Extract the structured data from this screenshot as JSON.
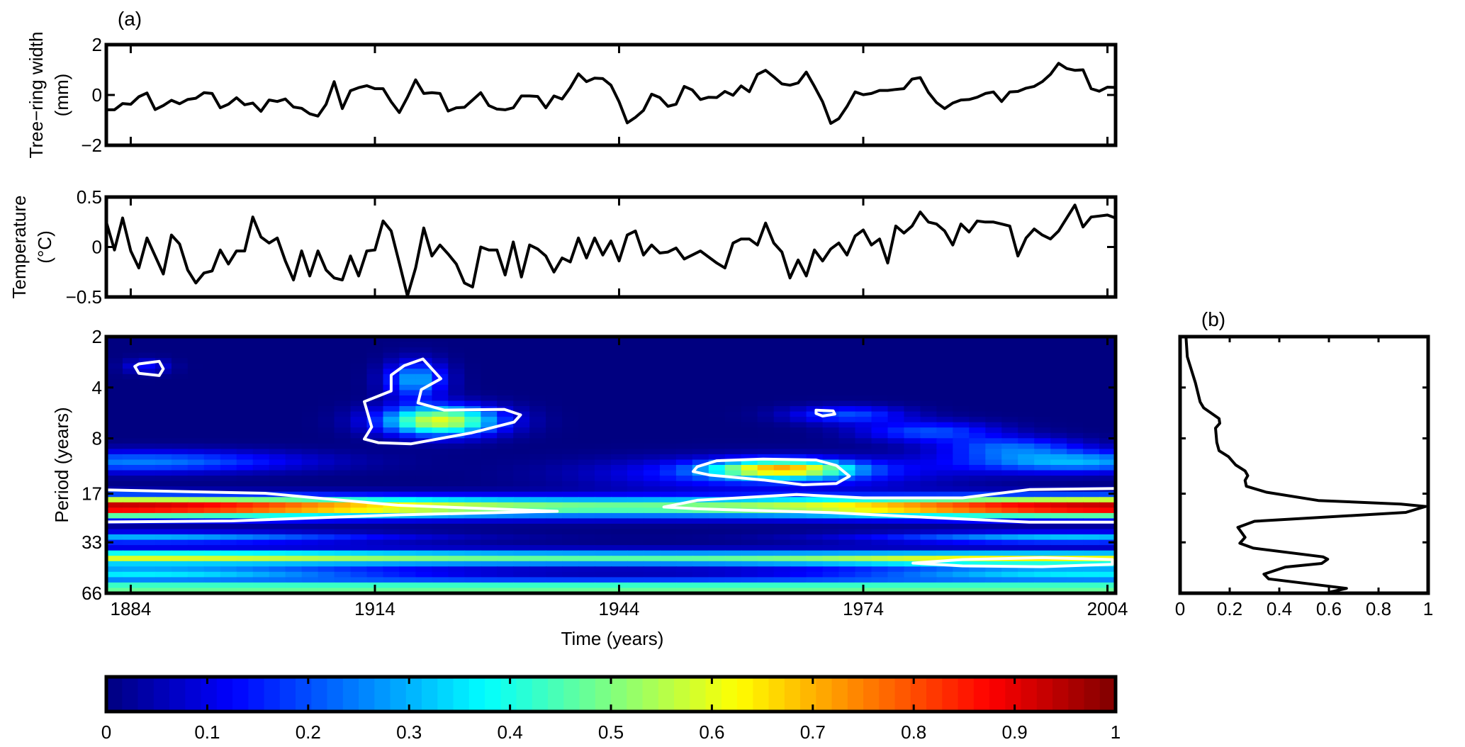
{
  "chart_data": [
    {
      "id": "tree_ring",
      "type": "line",
      "panel_label": "(a)",
      "ylabel_lines": [
        "Tree−ring width",
        "(mm)"
      ],
      "xlim": [
        1881,
        2005
      ],
      "ylim": [
        -2,
        2
      ],
      "yticks": [
        2,
        0,
        -2
      ],
      "ytick_labels": [
        "2",
        "0",
        "−2"
      ],
      "x_start": 1881,
      "x_step": 1,
      "values": [
        -0.59,
        -0.59,
        -0.34,
        -0.37,
        -0.07,
        0.08,
        -0.58,
        -0.42,
        -0.21,
        -0.35,
        -0.18,
        -0.13,
        0.09,
        0.06,
        -0.51,
        -0.37,
        -0.11,
        -0.39,
        -0.32,
        -0.65,
        -0.2,
        -0.26,
        -0.16,
        -0.48,
        -0.53,
        -0.75,
        -0.84,
        -0.37,
        0.53,
        -0.54,
        0.17,
        0.29,
        0.37,
        0.25,
        0.25,
        -0.27,
        -0.7,
        -0.09,
        0.6,
        0.06,
        0.09,
        0.06,
        -0.64,
        -0.51,
        -0.49,
        -0.2,
        0.09,
        -0.42,
        -0.56,
        -0.59,
        -0.51,
        -0.04,
        -0.04,
        -0.06,
        -0.51,
        -0.04,
        -0.16,
        0.29,
        0.84,
        0.53,
        0.67,
        0.65,
        0.39,
        -0.27,
        -1.11,
        -0.89,
        -0.61,
        0.03,
        -0.1,
        -0.45,
        -0.37,
        0.34,
        0.2,
        -0.18,
        -0.09,
        -0.1,
        0.14,
        -0.01,
        0.36,
        0.13,
        0.82,
        0.98,
        0.72,
        0.44,
        0.39,
        0.48,
        0.91,
        0.34,
        -0.27,
        -1.13,
        -0.94,
        -0.46,
        0.12,
        0.01,
        0.06,
        0.18,
        0.18,
        0.22,
        0.25,
        0.63,
        0.69,
        0.1,
        -0.3,
        -0.54,
        -0.32,
        -0.2,
        -0.18,
        -0.09,
        0.06,
        0.12,
        -0.26,
        0.12,
        0.14,
        0.27,
        0.34,
        0.53,
        0.82,
        1.26,
        1.05,
        0.98,
        1.0,
        0.25,
        0.15,
        0.31,
        0.3
      ]
    },
    {
      "id": "temperature",
      "type": "line",
      "ylabel_lines": [
        "Temperature",
        "(°C)"
      ],
      "xlim": [
        1881,
        2005
      ],
      "ylim": [
        -0.5,
        0.5
      ],
      "yticks": [
        0.5,
        0,
        -0.5
      ],
      "ytick_labels": [
        "0.5",
        "0",
        "−0.5"
      ],
      "x_start": 1881,
      "x_step": 1,
      "values": [
        0.25,
        -0.03,
        0.29,
        -0.04,
        -0.21,
        0.09,
        -0.09,
        -0.27,
        0.12,
        0.03,
        -0.23,
        -0.36,
        -0.26,
        -0.24,
        -0.03,
        -0.17,
        -0.04,
        -0.04,
        0.3,
        0.1,
        0.04,
        0.09,
        -0.14,
        -0.33,
        -0.04,
        -0.29,
        -0.04,
        -0.23,
        -0.31,
        -0.33,
        -0.09,
        -0.29,
        -0.04,
        -0.03,
        0.26,
        0.16,
        -0.16,
        -0.49,
        -0.21,
        0.19,
        -0.09,
        0.02,
        -0.07,
        -0.17,
        -0.36,
        -0.4,
        0.0,
        -0.03,
        -0.03,
        -0.28,
        0.05,
        -0.3,
        0.02,
        -0.02,
        -0.09,
        -0.25,
        -0.11,
        -0.15,
        0.09,
        -0.11,
        0.09,
        -0.08,
        0.06,
        -0.14,
        0.12,
        0.16,
        -0.08,
        0.02,
        -0.06,
        -0.05,
        -0.01,
        -0.12,
        -0.08,
        -0.04,
        -0.1,
        -0.16,
        -0.21,
        0.04,
        0.08,
        0.08,
        0.02,
        0.24,
        0.04,
        -0.05,
        -0.31,
        -0.13,
        -0.29,
        -0.03,
        -0.14,
        -0.02,
        0.04,
        -0.08,
        0.11,
        0.17,
        0.02,
        0.08,
        -0.16,
        0.21,
        0.14,
        0.21,
        0.35,
        0.25,
        0.23,
        0.16,
        0.02,
        0.23,
        0.15,
        0.26,
        0.25,
        0.25,
        0.23,
        0.21,
        -0.09,
        0.09,
        0.18,
        0.12,
        0.08,
        0.16,
        0.29,
        0.42,
        0.2,
        0.3,
        0.31,
        0.32,
        0.29
      ]
    },
    {
      "id": "wavelet_coherence",
      "type": "heatmap",
      "xlabel": "Time (years)",
      "ylabel": "Period (years)",
      "xlim": [
        1881,
        2005
      ],
      "ylim": [
        2,
        66
      ],
      "y_scale": "log2",
      "xticks": [
        1884,
        1914,
        1944,
        1974,
        2004
      ],
      "xtick_labels": [
        "1884",
        "1914",
        "1944",
        "1974",
        "2004"
      ],
      "yticks": [
        2,
        4,
        8,
        17,
        33,
        66
      ],
      "ytick_labels": [
        "2",
        "4",
        "8",
        "17",
        "33",
        "66"
      ],
      "colormap": "jet",
      "clim": [
        0,
        1
      ],
      "power_components": [
        {
          "year": 1943,
          "year_sd": 1000,
          "period": 20.4,
          "log2_sd": 0.14,
          "amp": 0.45
        },
        {
          "year": 1881,
          "year_sd": 26,
          "period": 20.4,
          "log2_sd": 0.14,
          "amp": 0.52
        },
        {
          "year": 2005,
          "year_sd": 24,
          "period": 20.4,
          "log2_sd": 0.14,
          "amp": 0.52
        },
        {
          "year": 1943,
          "year_sd": 1000,
          "period": 41,
          "log2_sd": 0.1,
          "amp": 0.45
        },
        {
          "year": 1995,
          "year_sd": 18,
          "period": 42,
          "log2_sd": 0.08,
          "amp": 0.2
        },
        {
          "year": 1885,
          "year_sd": 25,
          "period": 40,
          "log2_sd": 0.1,
          "amp": 0.15
        },
        {
          "year": 1943,
          "year_sd": 1000,
          "period": 62,
          "log2_sd": 0.12,
          "amp": 0.5
        },
        {
          "year": 1885,
          "year_sd": 22,
          "period": 31,
          "log2_sd": 0.08,
          "amp": 0.3
        },
        {
          "year": 2000,
          "year_sd": 18,
          "period": 31,
          "log2_sd": 0.08,
          "amp": 0.32
        },
        {
          "year": 1885,
          "year_sd": 22,
          "period": 50,
          "log2_sd": 0.08,
          "amp": 0.35
        },
        {
          "year": 2002,
          "year_sd": 22,
          "period": 50,
          "log2_sd": 0.08,
          "amp": 0.35
        },
        {
          "year": 1885,
          "year_sd": 14,
          "period": 11,
          "log2_sd": 0.15,
          "amp": 0.25
        },
        {
          "year": 2000,
          "year_sd": 10,
          "period": 11,
          "log2_sd": 0.15,
          "amp": 0.3
        },
        {
          "year": 1922,
          "year_sd": 5,
          "period": 6.3,
          "log2_sd": 0.2,
          "amp": 0.6
        },
        {
          "year": 1919,
          "year_sd": 2.5,
          "period": 3.6,
          "log2_sd": 0.25,
          "amp": 0.3
        },
        {
          "year": 1964,
          "year_sd": 6,
          "period": 12.1,
          "log2_sd": 0.12,
          "amp": 0.55
        },
        {
          "year": 1962,
          "year_sd": 14,
          "period": 13,
          "log2_sd": 0.22,
          "amp": 0.2
        },
        {
          "year": 1972,
          "year_sd": 5,
          "period": 5.8,
          "log2_sd": 0.12,
          "amp": 0.2
        },
        {
          "year": 1982,
          "year_sd": 6,
          "period": 7.3,
          "log2_sd": 0.14,
          "amp": 0.2
        },
        {
          "year": 1992,
          "year_sd": 6,
          "period": 9,
          "log2_sd": 0.14,
          "amp": 0.2
        },
        {
          "year": 1886,
          "year_sd": 2,
          "period": 3,
          "log2_sd": 0.1,
          "amp": 0.12
        }
      ],
      "significance_contours": [
        {
          "points": [
            [
              1885,
              2.9
            ],
            [
              1887.5,
              2.8
            ],
            [
              1888,
              3.1
            ],
            [
              1887.5,
              3.4
            ],
            [
              1885,
              3.3
            ],
            [
              1884.5,
              3.0
            ]
          ]
        },
        {
          "points": [
            [
              1919.9,
              2.71
            ],
            [
              1922.1,
              3.55
            ],
            [
              1919.7,
              4.12
            ],
            [
              1919.3,
              4.93
            ],
            [
              1922.5,
              5.44
            ],
            [
              1929.9,
              5.39
            ],
            [
              1931.9,
              5.81
            ],
            [
              1931.1,
              6.41
            ],
            [
              1925.8,
              7.43
            ],
            [
              1918.4,
              8.62
            ],
            [
              1914.4,
              8.48
            ],
            [
              1912.7,
              8.07
            ],
            [
              1913.6,
              6.85
            ],
            [
              1912.7,
              4.85
            ],
            [
              1916,
              4.19
            ],
            [
              1916,
              3.38
            ],
            [
              1917.6,
              2.97
            ]
          ]
        },
        {
          "points": [
            [
              1968.2,
              5.45
            ],
            [
              1970.3,
              5.5
            ],
            [
              1970.5,
              5.75
            ],
            [
              1969,
              5.9
            ],
            [
              1968.2,
              5.7
            ]
          ],
          "filled": true
        },
        {
          "points": [
            [
              1953.6,
              11.77
            ],
            [
              1956,
              10.85
            ],
            [
              1961.7,
              10.6
            ],
            [
              1968.2,
              10.74
            ],
            [
              1970.7,
              11.58
            ],
            [
              1972.3,
              13.4
            ],
            [
              1970.7,
              14.8
            ],
            [
              1966.6,
              15.06
            ],
            [
              1961.7,
              14.1
            ],
            [
              1955.2,
              13.2
            ],
            [
              1953.1,
              12.57
            ]
          ]
        },
        {
          "points": [
            [
              1879,
              16.08
            ],
            [
              1900.5,
              16.9
            ],
            [
              1916.8,
              19.9
            ],
            [
              1936.4,
              21.6
            ],
            [
              1916.8,
              22.7
            ],
            [
              1896.4,
              24.65
            ],
            [
              1879,
              25.05
            ]
          ]
        },
        {
          "points": [
            [
              1949.5,
              20.4
            ],
            [
              1953.6,
              18.6
            ],
            [
              1965.8,
              17.2
            ],
            [
              1974,
              18.0
            ],
            [
              1986.2,
              18.0
            ],
            [
              1994.4,
              16.08
            ],
            [
              2007,
              15.8
            ],
            [
              2007,
              25.05
            ],
            [
              1994.4,
              25.05
            ],
            [
              1982.1,
              23.5
            ],
            [
              1969.9,
              22.0
            ],
            [
              1953.6,
              20.9
            ]
          ]
        },
        {
          "points": [
            [
              1980.1,
              43.8
            ],
            [
              1986.2,
              41.7
            ],
            [
              1996,
              40.7
            ],
            [
              2004.6,
              41.7
            ],
            [
              2004.6,
              44.5
            ],
            [
              1996,
              46.0
            ],
            [
              1986.2,
              45.5
            ]
          ]
        }
      ]
    },
    {
      "id": "global_spectrum",
      "type": "line",
      "panel_label": "(b)",
      "xlim": [
        0,
        1
      ],
      "xticks": [
        0,
        0.2,
        0.4,
        0.6,
        0.8,
        1
      ],
      "xtick_labels": [
        "0",
        "0.2",
        "0.4",
        "0.6",
        "0.8",
        "1"
      ],
      "ylim": [
        2,
        66
      ],
      "y_scale": "log2",
      "points_power_period": [
        [
          0.024,
          2.03
        ],
        [
          0.029,
          2.63
        ],
        [
          0.062,
          3.76
        ],
        [
          0.081,
          4.87
        ],
        [
          0.095,
          5.28
        ],
        [
          0.157,
          6.11
        ],
        [
          0.16,
          6.52
        ],
        [
          0.143,
          6.96
        ],
        [
          0.148,
          8.45
        ],
        [
          0.157,
          9.46
        ],
        [
          0.195,
          10.26
        ],
        [
          0.224,
          11.49
        ],
        [
          0.262,
          12.46
        ],
        [
          0.273,
          13.29
        ],
        [
          0.262,
          14.18
        ],
        [
          0.267,
          15.37
        ],
        [
          0.348,
          16.67
        ],
        [
          0.557,
          18.66
        ],
        [
          0.89,
          19.59
        ],
        [
          0.99,
          20.24
        ],
        [
          0.91,
          21.95
        ],
        [
          0.3,
          24.75
        ],
        [
          0.233,
          26.9
        ],
        [
          0.262,
          30.83
        ],
        [
          0.241,
          33.4
        ],
        [
          0.295,
          35.7
        ],
        [
          0.576,
          40.2
        ],
        [
          0.595,
          41.5
        ],
        [
          0.571,
          44.0
        ],
        [
          0.424,
          46.2
        ],
        [
          0.338,
          50.9
        ],
        [
          0.357,
          54.3
        ],
        [
          0.671,
          61.8
        ],
        [
          0.605,
          64.9
        ]
      ]
    },
    {
      "id": "colorbar",
      "type": "colorbar",
      "colormap": "jet",
      "levels": 64,
      "range": [
        0,
        1
      ],
      "ticks": [
        0,
        0.1,
        0.2,
        0.3,
        0.4,
        0.5,
        0.6,
        0.7,
        0.8,
        0.9,
        1
      ],
      "tick_labels": [
        "0",
        "0.1",
        "0.2",
        "0.3",
        "0.4",
        "0.5",
        "0.6",
        "0.7",
        "0.8",
        "0.9",
        "1"
      ]
    }
  ]
}
